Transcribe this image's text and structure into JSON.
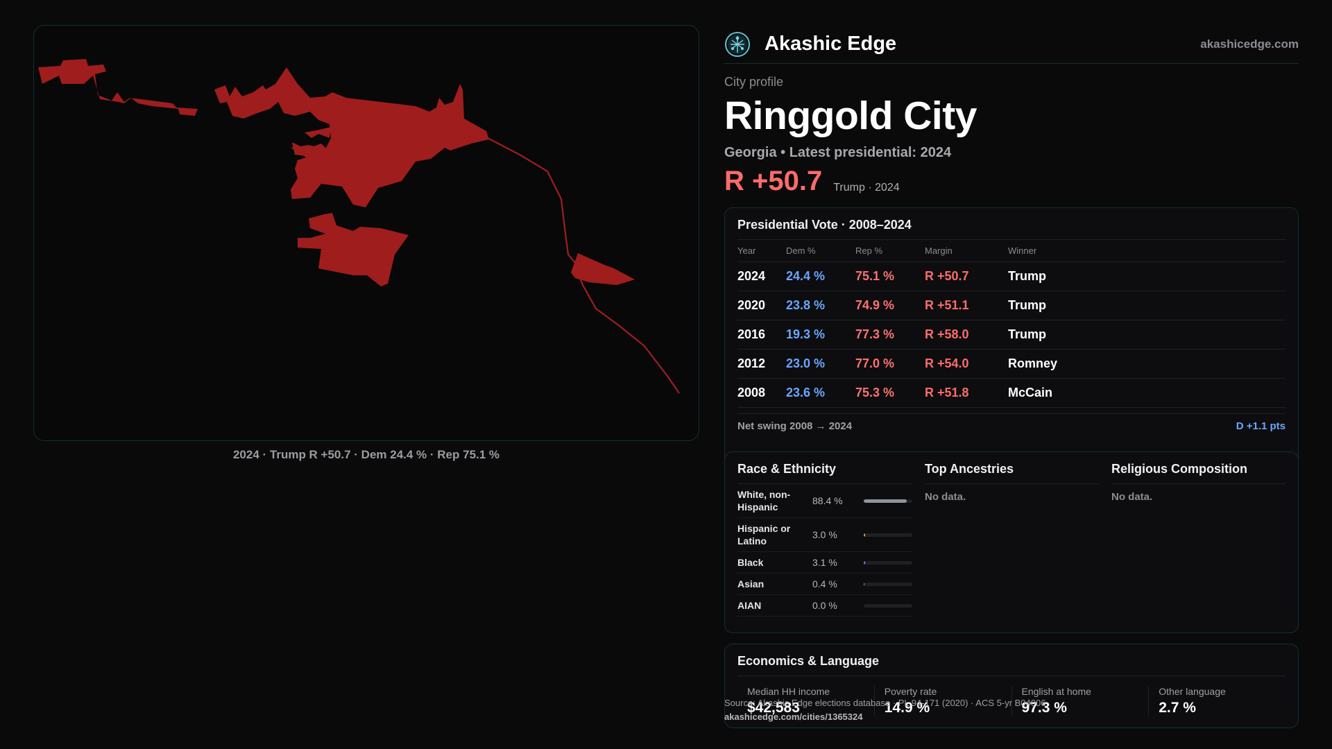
{
  "header": {
    "brand": "Akashic Edge",
    "site": "akashicedge.com",
    "logo_icon": "globe-network-icon"
  },
  "profile": {
    "eyebrow": "City profile",
    "city": "Ringgold City",
    "subtitle": "Georgia • Latest presidential: 2024",
    "margin": "R +50.7",
    "margin_note": "Trump · 2024"
  },
  "map": {
    "caption": "2024 · Trump R +50.7 · Dem 24.4 % · Rep 75.1 %",
    "fill_color": "#a01d1d"
  },
  "vote": {
    "title": "Presidential Vote · 2008–2024",
    "headers": {
      "year": "Year",
      "dem": "Dem %",
      "rep": "Rep %",
      "margin": "Margin",
      "winner": "Winner"
    },
    "rows": [
      {
        "year": "2024",
        "dem": "24.4 %",
        "rep": "75.1 %",
        "margin": "R +50.7",
        "winner": "Trump"
      },
      {
        "year": "2020",
        "dem": "23.8 %",
        "rep": "74.9 %",
        "margin": "R +51.1",
        "winner": "Trump"
      },
      {
        "year": "2016",
        "dem": "19.3 %",
        "rep": "77.3 %",
        "margin": "R +58.0",
        "winner": "Trump"
      },
      {
        "year": "2012",
        "dem": "23.0 %",
        "rep": "77.0 %",
        "margin": "R +54.0",
        "winner": "Romney"
      },
      {
        "year": "2008",
        "dem": "23.6 %",
        "rep": "75.3 %",
        "margin": "R +51.8",
        "winner": "McCain"
      }
    ],
    "swing_label": "Net swing 2008 → 2024",
    "swing_value": "D +1.1 pts"
  },
  "race": {
    "title": "Race & Ethnicity",
    "rows": [
      {
        "label": "White, non-Hispanic",
        "pct": "88.4 %",
        "value": 88.4,
        "color": "#8e949c"
      },
      {
        "label": "Hispanic or Latino",
        "pct": "3.0 %",
        "value": 3.0,
        "color": "#e3a233"
      },
      {
        "label": "Black",
        "pct": "3.1 %",
        "value": 3.1,
        "color": "#7d7df0"
      },
      {
        "label": "Asian",
        "pct": "0.4 %",
        "value": 0.4,
        "color": "#4fc3c3"
      },
      {
        "label": "AIAN",
        "pct": "0.0 %",
        "value": 0.0,
        "color": "#c07a4f"
      }
    ]
  },
  "ancestries": {
    "title": "Top Ancestries",
    "empty": "No data."
  },
  "religion": {
    "title": "Religious Composition",
    "empty": "No data."
  },
  "econ": {
    "title": "Economics & Language",
    "cells": [
      {
        "label": "Median HH income",
        "value": "$42,583"
      },
      {
        "label": "Poverty rate",
        "value": "14.9 %"
      },
      {
        "label": "English at home",
        "value": "97.3 %"
      },
      {
        "label": "Other language",
        "value": "2.7 %"
      }
    ]
  },
  "source": {
    "line": "Source: Akashic Edge elections database · PL 94-171 (2020) · ACS 5-yr B04006",
    "url": "akashicedge.com/cities/1365324"
  }
}
